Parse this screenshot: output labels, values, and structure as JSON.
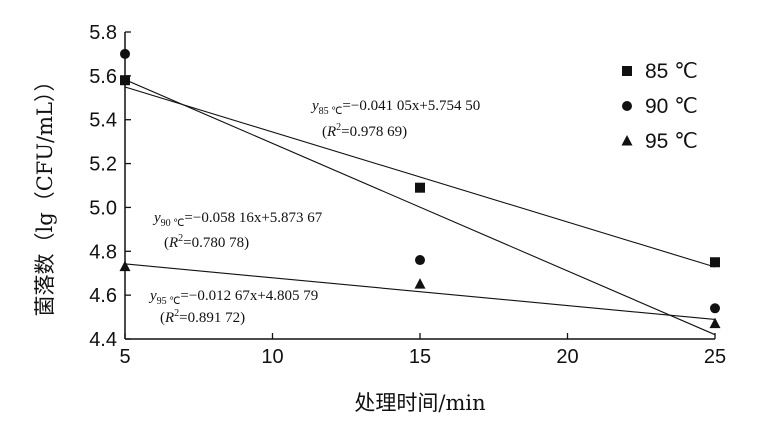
{
  "chart_data": {
    "type": "scatter",
    "xlabel": "处理时间/min",
    "ylabel": "菌落数（lg（CFU/mL））",
    "xlim": [
      5,
      25
    ],
    "ylim": [
      4.4,
      5.8
    ],
    "x_ticks": [
      "5",
      "10",
      "15",
      "20",
      "25"
    ],
    "y_ticks": [
      "4.4",
      "4.6",
      "4.8",
      "5.0",
      "5.2",
      "5.4",
      "5.6",
      "5.8"
    ],
    "legend_position": "top-right",
    "grid": false,
    "series": [
      {
        "name": "85 ℃",
        "marker": "square",
        "x": [
          5,
          15,
          25
        ],
        "y": [
          5.58,
          5.09,
          4.75
        ],
        "fit": {
          "slope": -0.04105,
          "intercept": 5.7545
        },
        "equation": {
          "y": "y",
          "sub": "85 ℃",
          "rhs": "=−0.041 05x+5.754 50",
          "r2_label": "R",
          "r2_value": "=0.978 69"
        }
      },
      {
        "name": "90 ℃",
        "marker": "circle",
        "x": [
          5,
          15,
          25
        ],
        "y": [
          5.7,
          4.76,
          4.54
        ],
        "fit": {
          "slope": -0.05816,
          "intercept": 5.87367
        },
        "equation": {
          "y": "y",
          "sub": "90 ℃",
          "rhs": "=−0.058 16x+5.873 67",
          "r2_label": "R",
          "r2_value": "=0.780 78"
        }
      },
      {
        "name": "95 ℃",
        "marker": "triangle",
        "x": [
          5,
          15,
          25
        ],
        "y": [
          4.73,
          4.65,
          4.47
        ],
        "fit": {
          "slope": -0.01267,
          "intercept": 4.80579
        },
        "equation": {
          "y": "y",
          "sub": "95 ℃",
          "rhs": "=−0.012 67x+4.805 79",
          "r2_label": "R",
          "r2_value": "=0.891 72"
        }
      }
    ]
  }
}
